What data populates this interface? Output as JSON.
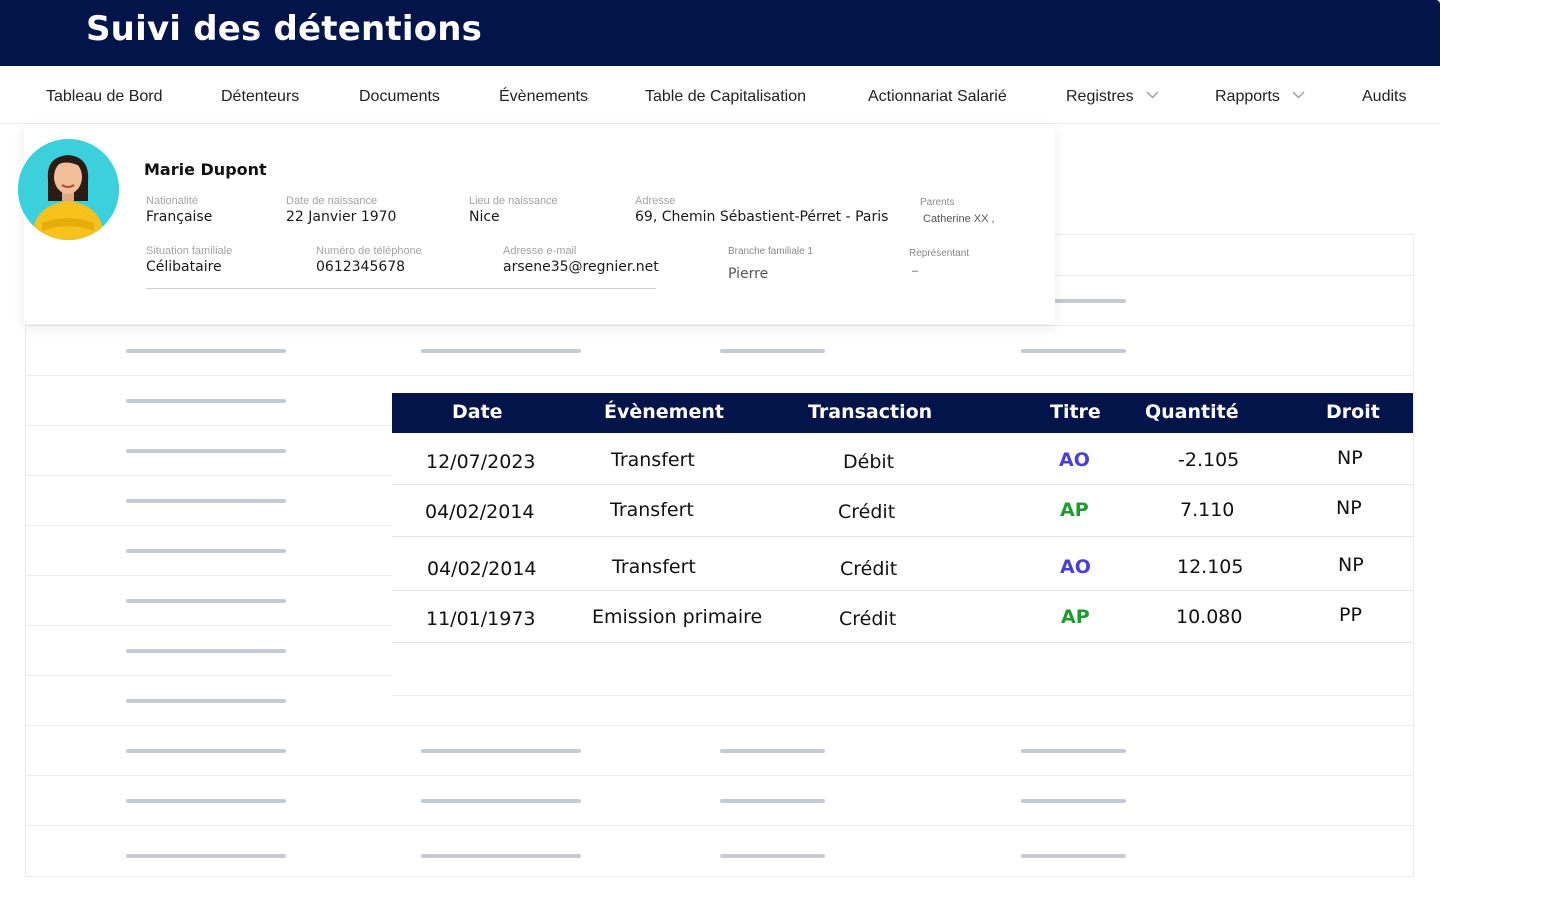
{
  "header": {
    "title": "Suivi des détentions"
  },
  "nav": {
    "items": [
      {
        "label": "Tableau de Bord"
      },
      {
        "label": "Détenteurs"
      },
      {
        "label": "Documents"
      },
      {
        "label": "Évènements"
      },
      {
        "label": "Table de Capitalisation"
      },
      {
        "label": "Actionnariat Salarié"
      },
      {
        "label": "Registres"
      },
      {
        "label": "Rapports"
      },
      {
        "label": "Audits"
      }
    ]
  },
  "profile": {
    "name": "Marie Dupont",
    "nationality": {
      "label": "Nationalité",
      "value": "Française"
    },
    "birth_date": {
      "label": "Date de naissance",
      "value": "22 Janvier 1970"
    },
    "birth_place": {
      "label": "Lieu de naissance",
      "value": "Nice"
    },
    "address": {
      "label": "Adresse",
      "value": "69, Chemin Sébastient-Pérret - Paris"
    },
    "parents": {
      "label": "Parents",
      "value": "Catherine XX ,"
    },
    "marital_status": {
      "label": "Situation familiale",
      "value": "Célibataire"
    },
    "phone": {
      "label": "Numéro de téléphone",
      "value": "0612345678"
    },
    "email": {
      "label": "Adresse e-mail",
      "value": "arsene35@regnier.net"
    },
    "family_branch": {
      "label": "Branche familiale 1",
      "value": "Pierre"
    },
    "representative": {
      "label": "Représentant",
      "value": "–"
    }
  },
  "holdings": {
    "columns": [
      "Date",
      "Évènement",
      "Transaction",
      "Titre",
      "Quantité",
      "Droit"
    ],
    "rows": [
      {
        "date": "12/07/2023",
        "event": "Transfert",
        "transaction": "Débit",
        "titre": "AO",
        "quantity": "-2.105",
        "droit": "NP"
      },
      {
        "date": "04/02/2014",
        "event": "Transfert",
        "transaction": "Crédit",
        "titre": "AP",
        "quantity": "7.110",
        "droit": "NP"
      },
      {
        "date": "04/02/2014",
        "event": "Transfert",
        "transaction": "Crédit",
        "titre": "AO",
        "quantity": "12.105",
        "droit": "NP"
      },
      {
        "date": "11/01/1973",
        "event": "Emission primaire",
        "transaction": "Crédit",
        "titre": "AP",
        "quantity": "10.080",
        "droit": "PP"
      }
    ]
  },
  "colors": {
    "navy": "#02144a",
    "titre_AO": "#4a3fd1",
    "titre_AP": "#1f9a2e"
  }
}
